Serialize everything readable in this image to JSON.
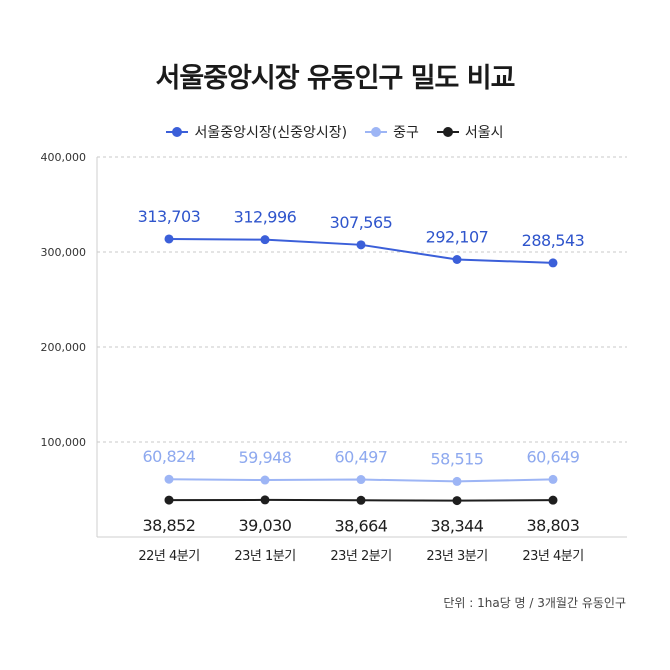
{
  "chart_data": {
    "type": "line",
    "title": "서울중앙시장 유동인구 밀도 비교",
    "categories": [
      "22년 4분기",
      "23년 1분기",
      "23년 2분기",
      "23년 3분기",
      "23년 4분기"
    ],
    "y_ticks": [
      "400,000",
      "300,000",
      "200,000",
      "100,000"
    ],
    "ylim": [
      0,
      400000
    ],
    "grid": true,
    "legend_position": "top-center",
    "series": [
      {
        "name": "서울중앙시장(신중앙시장)",
        "color": "#3b5fd9",
        "values": [
          313703,
          312996,
          307565,
          292107,
          288543
        ],
        "labels": [
          "313,703",
          "312,996",
          "307,565",
          "292,107",
          "288,543"
        ],
        "label_color": "#2f55cc",
        "label_position": "above"
      },
      {
        "name": "중구",
        "color": "#9db5f5",
        "values": [
          60824,
          59948,
          60497,
          58515,
          60649
        ],
        "labels": [
          "60,824",
          "59,948",
          "60,497",
          "58,515",
          "60,649"
        ],
        "label_color": "#8ea9ef",
        "label_position": "above"
      },
      {
        "name": "서울시",
        "color": "#1e1e1e",
        "values": [
          38852,
          39030,
          38664,
          38344,
          38803
        ],
        "labels": [
          "38,852",
          "39,030",
          "38,664",
          "38,344",
          "38,803"
        ],
        "label_color": "#1e1e1e",
        "label_position": "below"
      }
    ],
    "unit_note": "단위 : 1ha당 명 / 3개월간 유동인구"
  }
}
